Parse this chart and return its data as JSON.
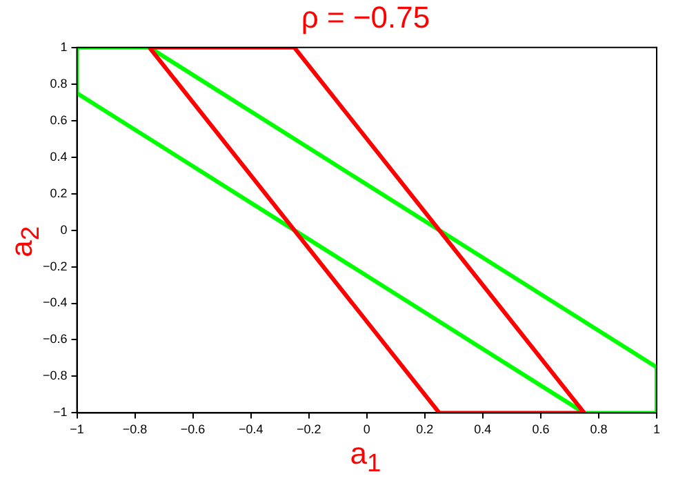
{
  "chart_data": {
    "type": "line",
    "title": "ρ = −0.75",
    "xlabel": "a$_{1}$",
    "ylabel": "a$_{2}$",
    "series": [
      {
        "color": "#ff0000",
        "x": [
          -0.75,
          -0.25,
          0.75
        ],
        "values": [
          1,
          1,
          -1
        ]
      },
      {
        "color": "#ff0000",
        "x": [
          -0.75,
          0.25,
          0.75
        ],
        "values": [
          1,
          -1,
          -1
        ]
      },
      {
        "color": "#00ff00",
        "x": [
          -1,
          -1,
          -0.75,
          1,
          1
        ],
        "values": [
          0.75,
          1,
          1,
          -0.75,
          -1
        ]
      },
      {
        "color": "#00ff00",
        "x": [
          -1,
          0.75,
          1
        ],
        "values": [
          0.75,
          -1,
          -1
        ]
      }
    ],
    "xlim": [
      -1,
      1
    ],
    "ylim": [
      -1,
      1
    ],
    "xticks": [
      -1,
      -0.8,
      -0.6,
      -0.4,
      -0.2,
      0,
      0.2,
      0.4,
      0.6,
      0.8,
      1
    ],
    "yticks": [
      -1,
      -0.8,
      -0.6,
      -0.4,
      -0.2,
      0,
      0.2,
      0.4,
      0.6,
      0.8,
      1
    ],
    "grid": false,
    "legend": false,
    "marker": "none",
    "line_style": "solid"
  }
}
